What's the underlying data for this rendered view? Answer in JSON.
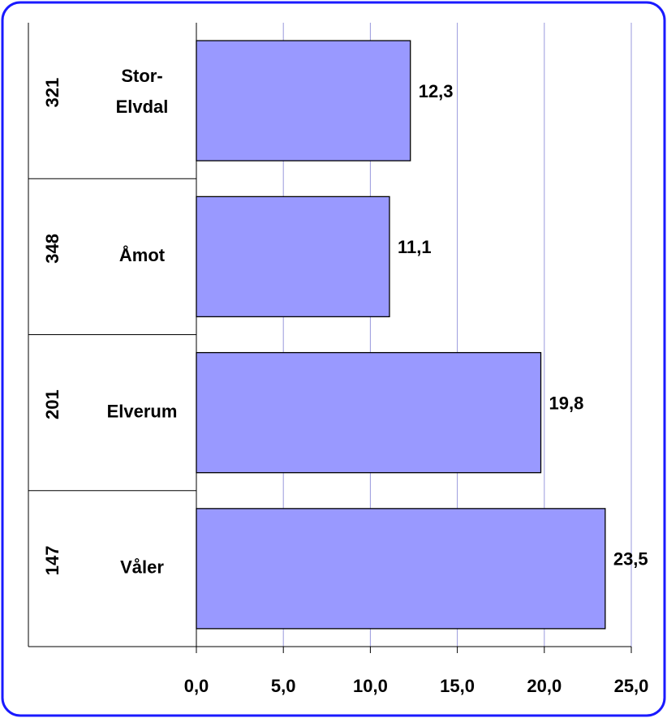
{
  "chart_data": {
    "type": "bar",
    "orientation": "horizontal",
    "group_codes": [
      "321",
      "348",
      "201",
      "147"
    ],
    "categories": [
      [
        "Stor-",
        "Elvdal"
      ],
      [
        "Åmot"
      ],
      [
        "Elverum"
      ],
      [
        "Våler"
      ]
    ],
    "values": [
      12.3,
      11.1,
      19.8,
      23.5
    ],
    "value_labels": [
      "12,3",
      "11,1",
      "19,8",
      "23,5"
    ],
    "color": "#9999ff",
    "xlim": [
      0,
      25
    ],
    "xticks": [
      {
        "value": 0,
        "label": "0,0"
      },
      {
        "value": 5,
        "label": "5,0"
      },
      {
        "value": 10,
        "label": "10,0"
      },
      {
        "value": 15,
        "label": "15,0"
      },
      {
        "value": 20,
        "label": "20,0"
      },
      {
        "value": 25,
        "label": "25,0"
      }
    ],
    "grid": true
  }
}
